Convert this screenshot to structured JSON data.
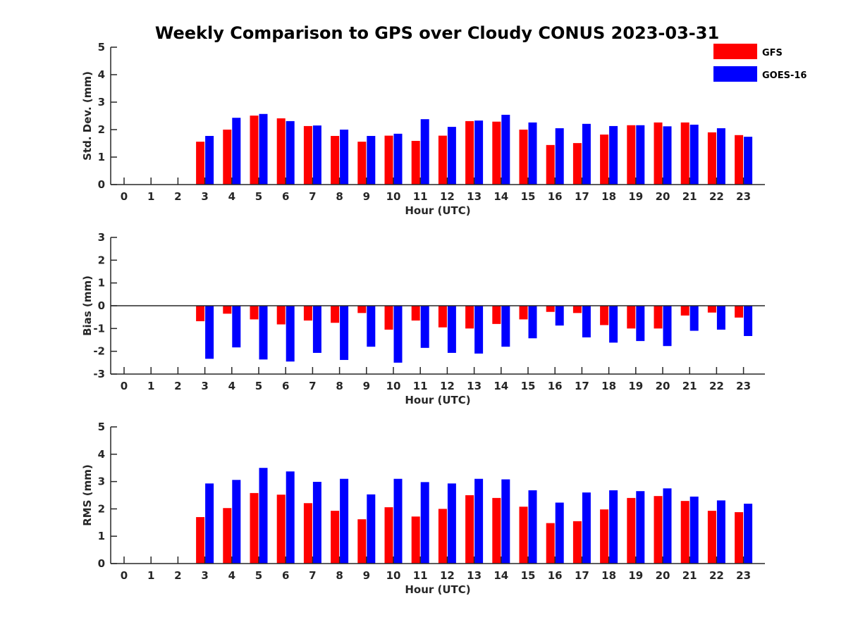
{
  "title": "Weekly Comparison to GPS over Cloudy CONUS 2023-03-31",
  "colors": {
    "GFS": "#ff0000",
    "GOES-16": "#0000ff"
  },
  "legend": {
    "placement": "top-right",
    "entries": [
      "GFS",
      "GOES-16"
    ]
  },
  "chart_data": [
    {
      "type": "bar",
      "xlabel": "Hour (UTC)",
      "ylabel": "Std. Dev. (mm)",
      "ylim": [
        0,
        5
      ],
      "yticks": [
        0,
        1,
        2,
        3,
        4,
        5
      ],
      "categories": [
        "0",
        "1",
        "2",
        "3",
        "4",
        "5",
        "6",
        "7",
        "8",
        "9",
        "10",
        "11",
        "12",
        "13",
        "14",
        "15",
        "16",
        "17",
        "18",
        "19",
        "20",
        "21",
        "22",
        "23"
      ],
      "series": [
        {
          "name": "GFS",
          "values": [
            null,
            null,
            null,
            1.56,
            2.0,
            2.51,
            2.41,
            2.13,
            1.77,
            1.56,
            1.78,
            1.59,
            1.78,
            2.31,
            2.29,
            2.0,
            1.44,
            1.51,
            1.82,
            2.16,
            2.26,
            2.26,
            1.9,
            1.8
          ]
        },
        {
          "name": "GOES-16",
          "values": [
            null,
            null,
            null,
            1.77,
            2.43,
            2.57,
            2.31,
            2.15,
            2.0,
            1.77,
            1.85,
            2.38,
            2.1,
            2.33,
            2.54,
            2.26,
            2.05,
            2.21,
            2.13,
            2.16,
            2.12,
            2.18,
            2.05,
            1.74
          ]
        }
      ]
    },
    {
      "type": "bar",
      "xlabel": "Hour (UTC)",
      "ylabel": "Bias (mm)",
      "ylim": [
        -3,
        3
      ],
      "yticks": [
        -3,
        -2,
        -1,
        0,
        1,
        2,
        3
      ],
      "categories": [
        "0",
        "1",
        "2",
        "3",
        "4",
        "5",
        "6",
        "7",
        "8",
        "9",
        "10",
        "11",
        "12",
        "13",
        "14",
        "15",
        "16",
        "17",
        "18",
        "19",
        "20",
        "21",
        "22",
        "23"
      ],
      "series": [
        {
          "name": "GFS",
          "values": [
            null,
            null,
            null,
            -0.68,
            -0.35,
            -0.6,
            -0.82,
            -0.65,
            -0.75,
            -0.32,
            -1.05,
            -0.65,
            -0.95,
            -1.0,
            -0.8,
            -0.6,
            -0.27,
            -0.32,
            -0.85,
            -1.0,
            -1.0,
            -0.43,
            -0.3,
            -0.52
          ]
        },
        {
          "name": "GOES-16",
          "values": [
            null,
            null,
            null,
            -2.33,
            -1.83,
            -2.36,
            -2.45,
            -2.07,
            -2.38,
            -1.8,
            -2.5,
            -1.85,
            -2.07,
            -2.1,
            -1.8,
            -1.43,
            -0.87,
            -1.39,
            -1.62,
            -1.55,
            -1.77,
            -1.1,
            -1.05,
            -1.33
          ]
        }
      ]
    },
    {
      "type": "bar",
      "xlabel": "Hour (UTC)",
      "ylabel": "RMS (mm)",
      "ylim": [
        0,
        5
      ],
      "yticks": [
        0,
        1,
        2,
        3,
        4,
        5
      ],
      "categories": [
        "0",
        "1",
        "2",
        "3",
        "4",
        "5",
        "6",
        "7",
        "8",
        "9",
        "10",
        "11",
        "12",
        "13",
        "14",
        "15",
        "16",
        "17",
        "18",
        "19",
        "20",
        "21",
        "22",
        "23"
      ],
      "series": [
        {
          "name": "GFS",
          "values": [
            null,
            null,
            null,
            1.7,
            2.03,
            2.58,
            2.52,
            2.21,
            1.93,
            1.62,
            2.06,
            1.72,
            2.0,
            2.5,
            2.4,
            2.08,
            1.48,
            1.55,
            1.98,
            2.4,
            2.47,
            2.29,
            1.93,
            1.88
          ]
        },
        {
          "name": "GOES-16",
          "values": [
            null,
            null,
            null,
            2.93,
            3.06,
            3.5,
            3.37,
            2.99,
            3.1,
            2.53,
            3.1,
            2.98,
            2.93,
            3.1,
            3.08,
            2.68,
            2.23,
            2.6,
            2.68,
            2.65,
            2.75,
            2.45,
            2.31,
            2.19
          ]
        }
      ]
    }
  ]
}
